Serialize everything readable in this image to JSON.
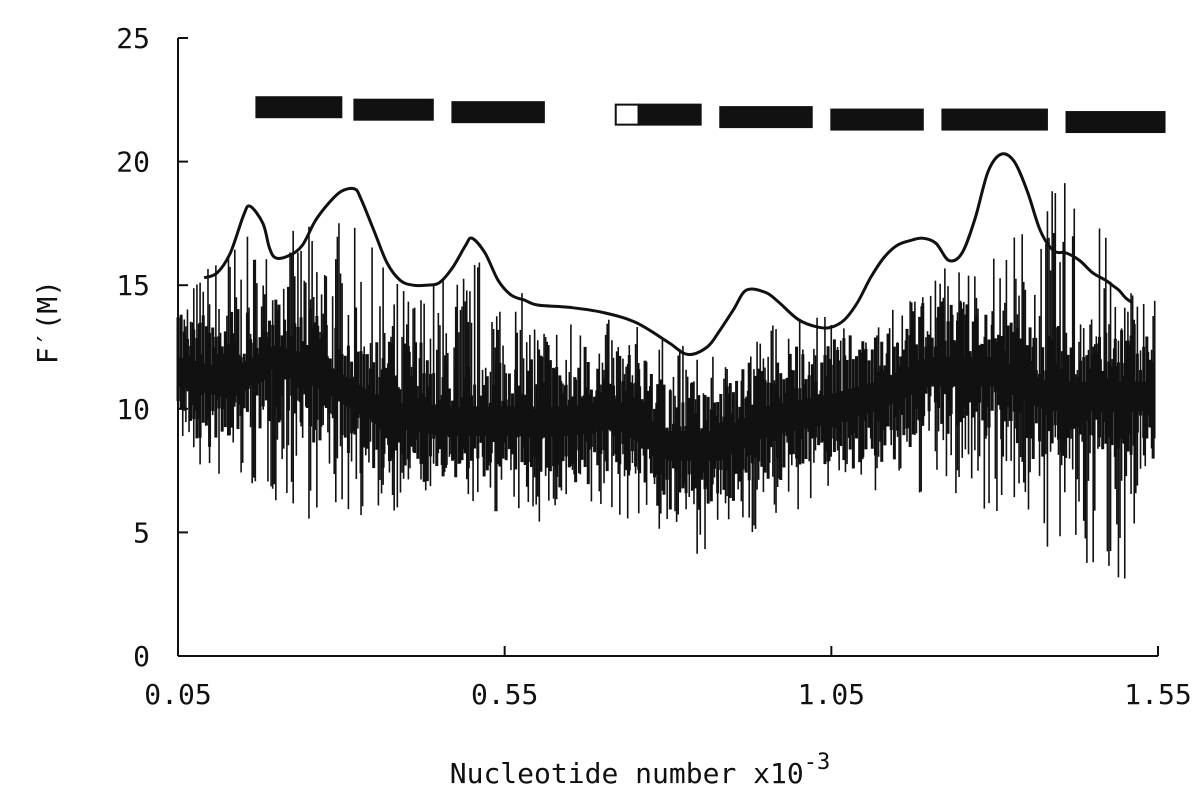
{
  "chart_data": {
    "type": "line",
    "xlabel_text": "Nucleotide number x10",
    "xlabel_exponent": "-3",
    "ylabel": "F′(M)",
    "xlim": [
      0.05,
      1.55
    ],
    "ylim": [
      0,
      25
    ],
    "x_ticks": [
      0.05,
      0.55,
      1.05,
      1.55
    ],
    "x_tick_labels": [
      "0.05",
      "0.55",
      "1.05",
      "1.55"
    ],
    "y_ticks": [
      0,
      5,
      10,
      15,
      20,
      25
    ],
    "y_tick_labels": [
      "0",
      "5",
      "10",
      "15",
      "20",
      "25"
    ],
    "grid": false,
    "series": [
      {
        "style": "vertical-spikes",
        "x_start": 0.05,
        "x_end": 1.545,
        "count": 620,
        "baseline": [
          [
            0.05,
            11.5
          ],
          [
            0.13,
            11.0
          ],
          [
            0.2,
            12.0
          ],
          [
            0.26,
            11.5
          ],
          [
            0.35,
            10.0
          ],
          [
            0.45,
            9.5
          ],
          [
            0.55,
            9.5
          ],
          [
            0.65,
            9.5
          ],
          [
            0.72,
            9.8
          ],
          [
            0.8,
            8.5
          ],
          [
            0.88,
            8.5
          ],
          [
            0.95,
            9.5
          ],
          [
            1.05,
            10.0
          ],
          [
            1.12,
            10.5
          ],
          [
            1.2,
            11.5
          ],
          [
            1.3,
            11.5
          ],
          [
            1.38,
            10.5
          ],
          [
            1.45,
            10.5
          ],
          [
            1.545,
            10.5
          ]
        ],
        "upper": [
          [
            0.05,
            14.5
          ],
          [
            0.12,
            17.0
          ],
          [
            0.2,
            17.0
          ],
          [
            0.3,
            18.0
          ],
          [
            0.4,
            15.0
          ],
          [
            0.52,
            16.5
          ],
          [
            0.6,
            14.0
          ],
          [
            0.75,
            13.5
          ],
          [
            0.88,
            12.0
          ],
          [
            1.0,
            14.5
          ],
          [
            1.1,
            13.0
          ],
          [
            1.22,
            16.0
          ],
          [
            1.3,
            16.5
          ],
          [
            1.42,
            19.8
          ],
          [
            1.5,
            15.5
          ],
          [
            1.545,
            15.0
          ]
        ],
        "lower": [
          [
            0.05,
            7.5
          ],
          [
            0.15,
            6.5
          ],
          [
            0.25,
            5.5
          ],
          [
            0.35,
            5.5
          ],
          [
            0.45,
            6.5
          ],
          [
            0.55,
            5.5
          ],
          [
            0.65,
            5.0
          ],
          [
            0.75,
            5.5
          ],
          [
            0.83,
            4.0
          ],
          [
            0.95,
            5.0
          ],
          [
            1.05,
            6.5
          ],
          [
            1.15,
            6.5
          ],
          [
            1.25,
            6.0
          ],
          [
            1.35,
            5.5
          ],
          [
            1.42,
            2.5
          ],
          [
            1.5,
            3.0
          ],
          [
            1.545,
            4.5
          ]
        ]
      },
      {
        "style": "envelope",
        "x": [
          0.09,
          0.11,
          0.13,
          0.15,
          0.16,
          0.18,
          0.19,
          0.2,
          0.22,
          0.24,
          0.26,
          0.28,
          0.3,
          0.32,
          0.33,
          0.35,
          0.37,
          0.39,
          0.41,
          0.43,
          0.45,
          0.47,
          0.49,
          0.5,
          0.52,
          0.54,
          0.56,
          0.58,
          0.6,
          0.65,
          0.7,
          0.75,
          0.8,
          0.83,
          0.86,
          0.88,
          0.9,
          0.92,
          0.95,
          0.97,
          1.0,
          1.03,
          1.05,
          1.07,
          1.09,
          1.11,
          1.13,
          1.15,
          1.17,
          1.19,
          1.21,
          1.23,
          1.25,
          1.27,
          1.29,
          1.31,
          1.33,
          1.35,
          1.37,
          1.39,
          1.41,
          1.43,
          1.45,
          1.47,
          1.48,
          1.49,
          1.5,
          1.51
        ],
        "y": [
          15.3,
          15.5,
          16.3,
          17.8,
          18.2,
          17.5,
          16.5,
          16.1,
          16.2,
          16.6,
          17.6,
          18.3,
          18.8,
          18.9,
          18.5,
          17.2,
          15.9,
          15.2,
          15.0,
          15.0,
          15.1,
          15.7,
          16.6,
          16.9,
          16.3,
          15.2,
          14.6,
          14.4,
          14.2,
          14.1,
          13.9,
          13.5,
          12.7,
          12.2,
          12.5,
          13.2,
          14.0,
          14.8,
          14.7,
          14.3,
          13.6,
          13.3,
          13.3,
          13.6,
          14.3,
          15.3,
          16.1,
          16.6,
          16.8,
          16.9,
          16.7,
          16.0,
          16.3,
          17.7,
          19.6,
          20.3,
          20.0,
          18.8,
          17.2,
          16.4,
          16.3,
          16.0,
          15.5,
          15.2,
          15.0,
          14.8,
          14.5,
          14.3
        ]
      }
    ],
    "top_blocks": [
      {
        "x0": 0.17,
        "x1": 0.3,
        "y": 22.2,
        "filled": true
      },
      {
        "x0": 0.32,
        "x1": 0.44,
        "y": 22.1,
        "filled": true
      },
      {
        "x0": 0.47,
        "x1": 0.61,
        "y": 22.0,
        "filled": true
      },
      {
        "x0": 0.72,
        "x1": 0.755,
        "y": 21.9,
        "filled": false
      },
      {
        "x0": 0.755,
        "x1": 0.85,
        "y": 21.9,
        "filled": true
      },
      {
        "x0": 0.88,
        "x1": 1.02,
        "y": 21.8,
        "filled": true
      },
      {
        "x0": 1.05,
        "x1": 1.19,
        "y": 21.7,
        "filled": true
      },
      {
        "x0": 1.22,
        "x1": 1.38,
        "y": 21.7,
        "filled": true
      },
      {
        "x0": 1.41,
        "x1": 1.56,
        "y": 21.6,
        "filled": true
      }
    ]
  }
}
